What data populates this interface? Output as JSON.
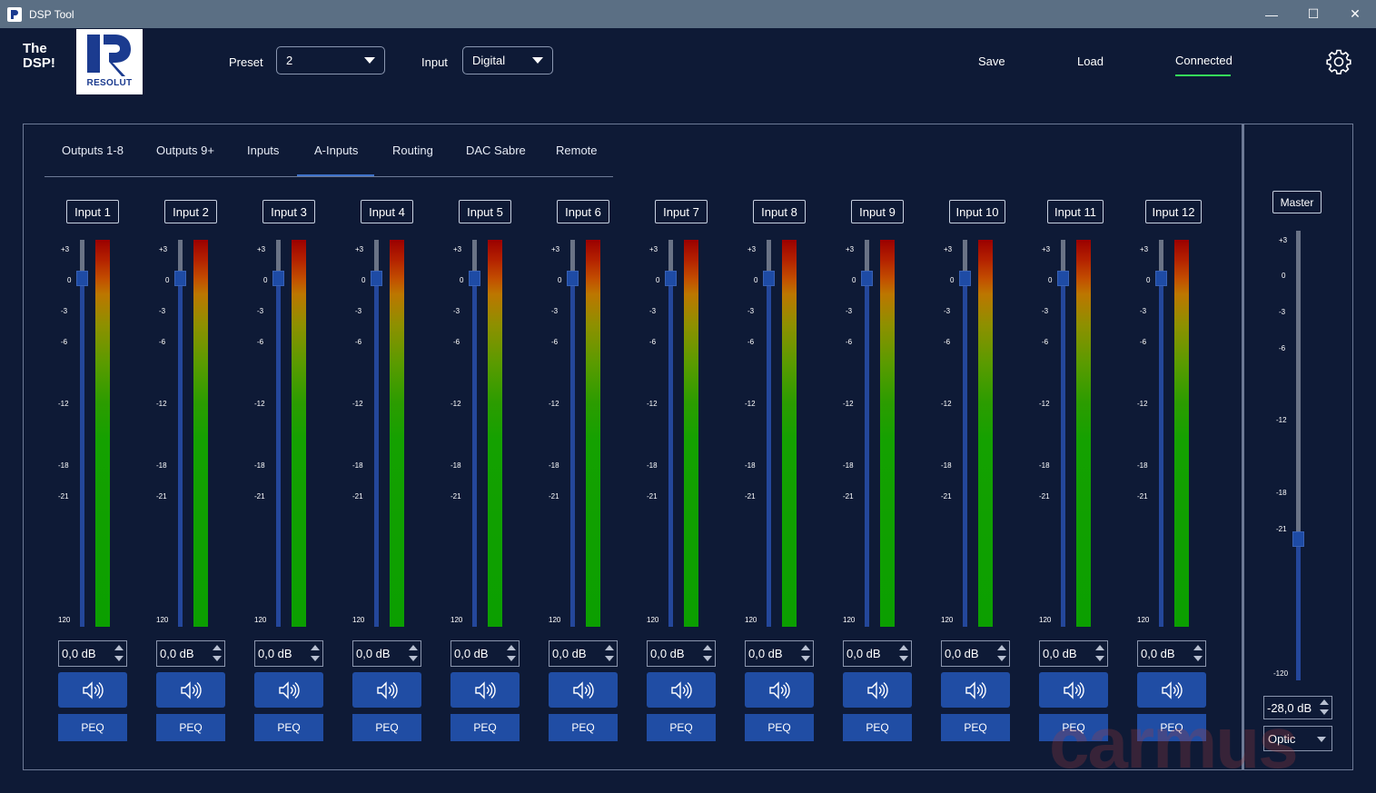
{
  "window": {
    "title": "DSP Tool",
    "controls": {
      "minimize": "—",
      "maximize": "☐",
      "close": "✕"
    }
  },
  "brand": {
    "line1": "The",
    "line2": "DSP!",
    "logo_text": "RESOLUT",
    "logo_color": "#1b3b8f"
  },
  "header": {
    "preset_label": "Preset",
    "preset_value": "2",
    "input_label": "Input",
    "input_value": "Digital",
    "save": "Save",
    "load": "Load",
    "status": "Connected",
    "status_color": "#35e05a",
    "settings_icon": "gear-icon"
  },
  "tabs": [
    {
      "label": "Outputs 1-8",
      "active": false
    },
    {
      "label": "Outputs 9+",
      "active": false
    },
    {
      "label": "Inputs",
      "active": false
    },
    {
      "label": "A-Inputs",
      "active": true
    },
    {
      "label": "Routing",
      "active": false
    },
    {
      "label": "DAC Sabre",
      "active": false
    },
    {
      "label": "Remote",
      "active": false
    }
  ],
  "scale_marks": [
    "+3",
    "0",
    "-3",
    "-6",
    "-12",
    "-18",
    "-21",
    "120"
  ],
  "channels": [
    {
      "name": "Input 1",
      "gain": "0,0 dB",
      "peq": "PEQ"
    },
    {
      "name": "Input 2",
      "gain": "0,0 dB",
      "peq": "PEQ"
    },
    {
      "name": "Input 3",
      "gain": "0,0 dB",
      "peq": "PEQ"
    },
    {
      "name": "Input 4",
      "gain": "0,0 dB",
      "peq": "PEQ"
    },
    {
      "name": "Input 5",
      "gain": "0,0 dB",
      "peq": "PEQ"
    },
    {
      "name": "Input 6",
      "gain": "0,0 dB",
      "peq": "PEQ"
    },
    {
      "name": "Input 7",
      "gain": "0,0 dB",
      "peq": "PEQ"
    },
    {
      "name": "Input 8",
      "gain": "0,0 dB",
      "peq": "PEQ"
    },
    {
      "name": "Input 9",
      "gain": "0,0 dB",
      "peq": "PEQ"
    },
    {
      "name": "Input 10",
      "gain": "0,0 dB",
      "peq": "PEQ"
    },
    {
      "name": "Input 11",
      "gain": "0,0 dB",
      "peq": "PEQ"
    },
    {
      "name": "Input 12",
      "gain": "0,0 dB",
      "peq": "PEQ"
    }
  ],
  "master": {
    "label": "Master",
    "scale_marks": [
      "+3",
      "0",
      "-3",
      "-6",
      "-12",
      "-18",
      "-21",
      "-120"
    ],
    "gain": "-28,0 dB",
    "source": "Optic"
  },
  "watermark": "carmus",
  "colors": {
    "background": "#0e1a36",
    "titlebar": "#5b6f84",
    "button": "#204da4",
    "active_tab": "#3f72c9"
  }
}
